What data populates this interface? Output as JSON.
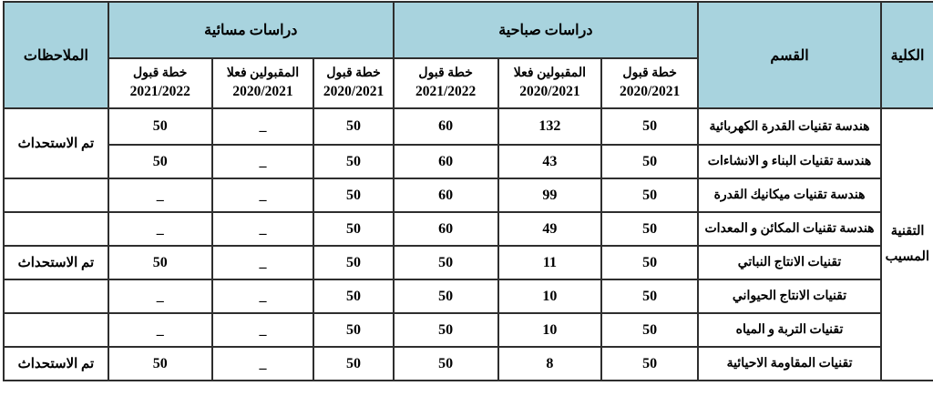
{
  "colors": {
    "header_bg": "#a8d3de",
    "border": "#2e2e2e",
    "cell_bg": "#ffffff",
    "text": "#000000"
  },
  "table": {
    "header": {
      "college": "الكلية",
      "dept": "القسم",
      "morning_group": "دراسات صباحية",
      "evening_group": "دراسات مسائية",
      "notes": "الملاحظات",
      "subheaders": [
        {
          "label": "خطة قبول",
          "year": "2020/2021"
        },
        {
          "label": "المقبولين فعلا",
          "year": "2020/2021"
        },
        {
          "label": "خطة قبول",
          "year": "2021/2022"
        },
        {
          "label": "خطة قبول",
          "year": "2020/2021"
        },
        {
          "label": "المقبولين فعلا",
          "year": "2020/2021"
        },
        {
          "label": "خطة قبول",
          "year": "2021/2022"
        }
      ]
    },
    "college_cell": "التقنية المسيب",
    "rows": [
      {
        "dept": "هندسة تقنيات القدرة الكهربائية",
        "m_plan_2020": "50",
        "m_actual_2020": "132",
        "m_plan_2021": "60",
        "e_plan_2020": "50",
        "e_actual_2020": "_",
        "e_plan_2021": "50",
        "notes": "تم الاستحداث"
      },
      {
        "dept": "هندسة تقنيات البناء و الانشاءات",
        "m_plan_2020": "50",
        "m_actual_2020": "43",
        "m_plan_2021": "60",
        "e_plan_2020": "50",
        "e_actual_2020": "_",
        "e_plan_2021": "50"
      },
      {
        "dept": "هندسة تقنيات ميكانيك القدرة",
        "m_plan_2020": "50",
        "m_actual_2020": "99",
        "m_plan_2021": "60",
        "e_plan_2020": "50",
        "e_actual_2020": "_",
        "e_plan_2021": "_",
        "notes": ""
      },
      {
        "dept": "هندسة تقنيات المكائن و المعدات",
        "m_plan_2020": "50",
        "m_actual_2020": "49",
        "m_plan_2021": "60",
        "e_plan_2020": "50",
        "e_actual_2020": "_",
        "e_plan_2021": "_",
        "notes": ""
      },
      {
        "dept": "تقنيات الانتاج النباتي",
        "m_plan_2020": "50",
        "m_actual_2020": "11",
        "m_plan_2021": "50",
        "e_plan_2020": "50",
        "e_actual_2020": "_",
        "e_plan_2021": "50",
        "notes": "تم الاستحداث"
      },
      {
        "dept": "تقنيات الانتاج الحيواني",
        "m_plan_2020": "50",
        "m_actual_2020": "10",
        "m_plan_2021": "50",
        "e_plan_2020": "50",
        "e_actual_2020": "_",
        "e_plan_2021": "_",
        "notes": ""
      },
      {
        "dept": "تقنيات التربة و المياه",
        "m_plan_2020": "50",
        "m_actual_2020": "10",
        "m_plan_2021": "50",
        "e_plan_2020": "50",
        "e_actual_2020": "_",
        "e_plan_2021": "_",
        "notes": ""
      },
      {
        "dept": "تقنيات المقاومة الاحيائية",
        "m_plan_2020": "50",
        "m_actual_2020": "8",
        "m_plan_2021": "50",
        "e_plan_2020": "50",
        "e_actual_2020": "_",
        "e_plan_2021": "50",
        "notes": "تم الاستحداث"
      }
    ]
  }
}
